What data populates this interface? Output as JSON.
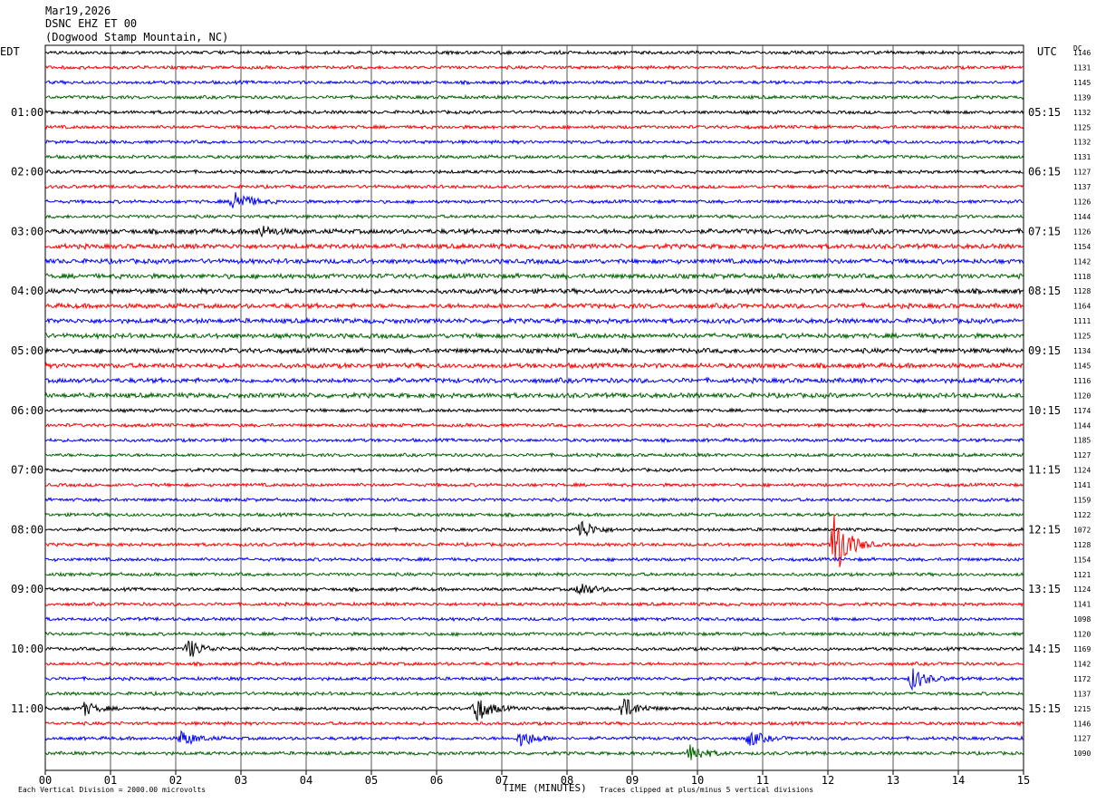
{
  "header": {
    "date": "Mar19,2026",
    "channel": "DSNC EHZ ET 00",
    "station": "(Dogwood Stamp Mountain, NC)"
  },
  "left_timezone": "EDT",
  "right_timezone": "UTC",
  "dc_label": "DC",
  "footer": {
    "scale_note": "Each Vertical Division = 2000.00 microvolts",
    "xlabel": "TIME (MINUTES)",
    "clip_note": "Traces clipped at plus/minus 5 vertical divisions"
  },
  "colors": {
    "trace_cycle": [
      "#000000",
      "#ff0000",
      "#0000ff",
      "#006400"
    ],
    "grid": "#555555"
  },
  "chart_data": {
    "type": "line",
    "title": "DSNC EHZ ET 00",
    "xlabel": "TIME (MINUTES)",
    "xlim": [
      0,
      15
    ],
    "x_ticks": [
      "00",
      "01",
      "02",
      "03",
      "04",
      "05",
      "06",
      "07",
      "08",
      "09",
      "10",
      "11",
      "12",
      "13",
      "14",
      "15"
    ],
    "traces_per_hour": 4,
    "minutes_per_trace": 15,
    "left_hour_labels": [
      "01:00",
      "02:00",
      "03:00",
      "04:00",
      "05:00",
      "06:00",
      "07:00",
      "08:00",
      "09:00",
      "10:00",
      "11:00"
    ],
    "right_hour_labels": [
      "05:15",
      "06:15",
      "07:15",
      "08:15",
      "09:15",
      "10:15",
      "11:15",
      "12:15",
      "13:15",
      "14:15",
      "15:15"
    ],
    "dc_offsets": [
      1146,
      1131,
      1145,
      1139,
      1132,
      1125,
      1132,
      1131,
      1127,
      1137,
      1126,
      1144,
      1126,
      1154,
      1142,
      1118,
      1128,
      1164,
      1111,
      1125,
      1134,
      1145,
      1116,
      1120,
      1174,
      1144,
      1185,
      1127,
      1124,
      1141,
      1159,
      1122,
      1072,
      1128,
      1154,
      1121,
      1124,
      1141,
      1098,
      1120,
      1169,
      1142,
      1172,
      1137,
      1215,
      1146,
      1127,
      1090
    ],
    "events": [
      {
        "trace": 10,
        "minute": 2.9,
        "amplitude": 1.6
      },
      {
        "trace": 12,
        "minute": 3.3,
        "amplitude": 0.7
      },
      {
        "trace": 32,
        "minute": 8.2,
        "amplitude": 1.3
      },
      {
        "trace": 33,
        "minute": 12.1,
        "amplitude": 4.5
      },
      {
        "trace": 36,
        "minute": 8.2,
        "amplitude": 0.9
      },
      {
        "trace": 40,
        "minute": 2.2,
        "amplitude": 1.2
      },
      {
        "trace": 42,
        "minute": 13.3,
        "amplitude": 1.4
      },
      {
        "trace": 44,
        "minute": 6.6,
        "amplitude": 1.8
      },
      {
        "trace": 44,
        "minute": 8.85,
        "amplitude": 1.5
      },
      {
        "trace": 44,
        "minute": 0.6,
        "amplitude": 0.8
      },
      {
        "trace": 46,
        "minute": 7.3,
        "amplitude": 1.1
      },
      {
        "trace": 46,
        "minute": 10.8,
        "amplitude": 1.0
      },
      {
        "trace": 46,
        "minute": 2.1,
        "amplitude": 1.0
      },
      {
        "trace": 47,
        "minute": 9.9,
        "amplitude": 1.2
      }
    ]
  }
}
